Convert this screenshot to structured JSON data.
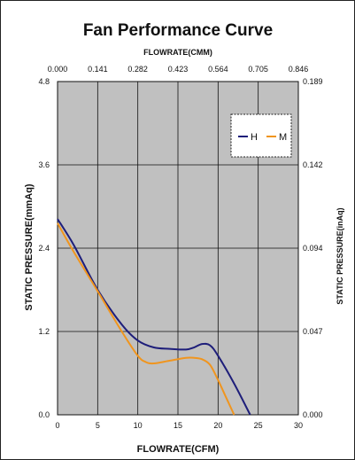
{
  "chart_data": {
    "type": "line",
    "title": "Fan Performance Curve",
    "xlabel": "FLOWRATE(CFM)",
    "x2label": "FLOWRATE(CMM)",
    "ylabel": "STATIC PRESSURE(mmAq)",
    "y2label": "STATIC PRESSURE(inAq)",
    "xlim": [
      0,
      30
    ],
    "ylim": [
      0,
      4.8
    ],
    "x_ticks": [
      "0",
      "5",
      "10",
      "15",
      "20",
      "25",
      "30"
    ],
    "x2_ticks": [
      "0.000",
      "0.141",
      "0.282",
      "0.423",
      "0.564",
      "0.705",
      "0.846"
    ],
    "y_ticks": [
      "0.0",
      "1.2",
      "2.4",
      "3.6",
      "4.8"
    ],
    "y2_ticks": [
      "0.000",
      "0.047",
      "0.094",
      "0.142",
      "0.189"
    ],
    "grid": true,
    "legend_position": "top-right",
    "plot_background": "#c0c0c0",
    "series": [
      {
        "name": "H",
        "color": "#1e1e7a",
        "x": [
          0,
          2,
          5,
          8,
          10,
          12,
          14,
          16,
          17,
          18,
          19,
          20,
          22,
          24
        ],
        "y": [
          2.82,
          2.45,
          1.8,
          1.3,
          1.07,
          0.97,
          0.95,
          0.94,
          0.97,
          1.02,
          1.0,
          0.85,
          0.45,
          0.0
        ]
      },
      {
        "name": "M",
        "color": "#f0951e",
        "x": [
          0,
          2,
          5,
          8,
          10,
          11,
          12,
          14,
          16,
          17,
          18,
          19,
          20,
          21,
          22
        ],
        "y": [
          2.76,
          2.35,
          1.78,
          1.2,
          0.85,
          0.76,
          0.74,
          0.78,
          0.82,
          0.82,
          0.8,
          0.72,
          0.5,
          0.25,
          0.0
        ]
      }
    ]
  }
}
